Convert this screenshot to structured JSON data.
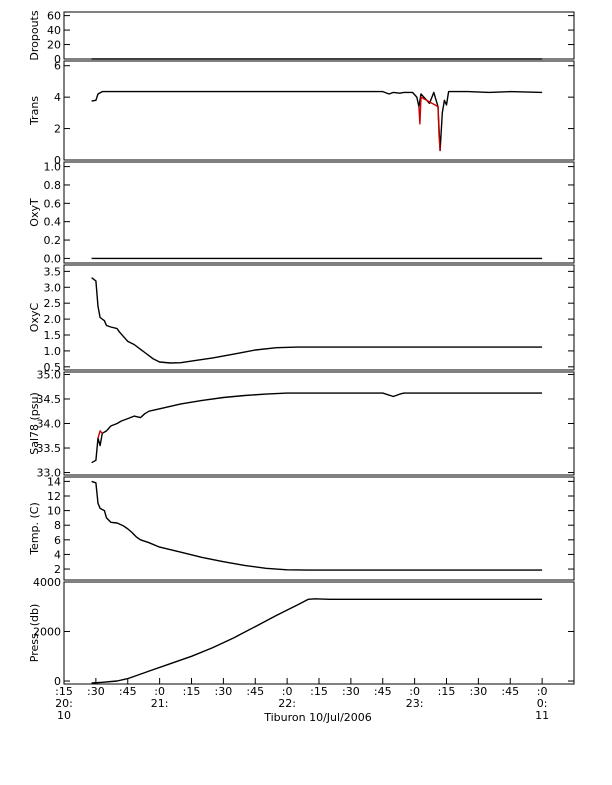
{
  "chart_data": {
    "type": "line",
    "xlabel": "Tiburon 10/Jul/2006",
    "x_ticks": [
      {
        "t": 0,
        "line1": ":15",
        "line2": "20:",
        "line3": "10"
      },
      {
        "t": 15,
        "line1": ":30",
        "line2": "",
        "line3": ""
      },
      {
        "t": 30,
        "line1": ":45",
        "line2": "",
        "line3": ""
      },
      {
        "t": 45,
        "line1": ":0",
        "line2": "21:",
        "line3": ""
      },
      {
        "t": 60,
        "line1": ":15",
        "line2": "",
        "line3": ""
      },
      {
        "t": 75,
        "line1": ":30",
        "line2": "",
        "line3": ""
      },
      {
        "t": 90,
        "line1": ":45",
        "line2": "",
        "line3": ""
      },
      {
        "t": 105,
        "line1": ":0",
        "line2": "22:",
        "line3": ""
      },
      {
        "t": 120,
        "line1": ":15",
        "line2": "",
        "line3": ""
      },
      {
        "t": 135,
        "line1": ":30",
        "line2": "",
        "line3": ""
      },
      {
        "t": 150,
        "line1": ":45",
        "line2": "",
        "line3": ""
      },
      {
        "t": 165,
        "line1": ":0",
        "line2": "23:",
        "line3": ""
      },
      {
        "t": 180,
        "line1": ":15",
        "line2": "",
        "line3": ""
      },
      {
        "t": 195,
        "line1": ":30",
        "line2": "",
        "line3": ""
      },
      {
        "t": 210,
        "line1": ":45",
        "line2": "",
        "line3": ""
      },
      {
        "t": 225,
        "line1": ":0",
        "line2": "0:",
        "line3": "11"
      }
    ],
    "xlim": [
      0,
      240
    ],
    "panels": [
      {
        "ylabel": "Dropouts",
        "ylim": [
          0,
          65
        ],
        "ticks": [
          0,
          20,
          40,
          60
        ],
        "tick_labels": [
          "0",
          "20",
          "40",
          "60"
        ],
        "series": [
          {
            "color": "#000000",
            "points": [
              [
                13,
                0
              ],
              [
                225,
                0
              ]
            ]
          }
        ]
      },
      {
        "ylabel": "Trans",
        "ylim": [
          0,
          6.3
        ],
        "ticks": [
          0,
          2,
          4,
          6
        ],
        "tick_labels": [
          "0",
          "2",
          "4",
          "6"
        ],
        "series": [
          {
            "color": "#000000",
            "points": [
              [
                13,
                3.75
              ],
              [
                15,
                3.8
              ],
              [
                16,
                4.2
              ],
              [
                18,
                4.35
              ],
              [
                30,
                4.35
              ],
              [
                60,
                4.35
              ],
              [
                100,
                4.35
              ],
              [
                150,
                4.35
              ],
              [
                153,
                4.2
              ],
              [
                155,
                4.3
              ],
              [
                158,
                4.25
              ],
              [
                160,
                4.3
              ],
              [
                164,
                4.3
              ],
              [
                166,
                4.0
              ],
              [
                167,
                3.4
              ],
              [
                168,
                4.2
              ],
              [
                170,
                3.9
              ],
              [
                172,
                3.6
              ],
              [
                174,
                4.3
              ],
              [
                176,
                3.4
              ],
              [
                177,
                0.6
              ],
              [
                178,
                3.0
              ],
              [
                179,
                3.8
              ],
              [
                180,
                3.5
              ],
              [
                181,
                4.35
              ],
              [
                190,
                4.35
              ],
              [
                200,
                4.3
              ],
              [
                210,
                4.35
              ],
              [
                225,
                4.3
              ]
            ]
          },
          {
            "color": "#cc0000",
            "points": [
              [
                167,
                3.4
              ],
              [
                167.5,
                2.3
              ],
              [
                168,
                4.0
              ],
              [
                176,
                3.4
              ],
              [
                176.5,
                1.5
              ],
              [
                177,
                0.6
              ]
            ]
          }
        ]
      },
      {
        "ylabel": "OxyT",
        "ylim": [
          -0.05,
          1.05
        ],
        "ticks": [
          0,
          0.2,
          0.4,
          0.6,
          0.8,
          1.0
        ],
        "tick_labels": [
          "0.0",
          "0.2",
          "0.4",
          "0.6",
          "0.8",
          "1.0"
        ],
        "series": [
          {
            "color": "#000000",
            "points": [
              [
                13,
                0
              ],
              [
                225,
                0
              ]
            ]
          }
        ]
      },
      {
        "ylabel": "OxyC",
        "ylim": [
          0.4,
          3.7
        ],
        "ticks": [
          0.5,
          1.0,
          1.5,
          2.0,
          2.5,
          3.0,
          3.5
        ],
        "tick_labels": [
          "0.5",
          "1.0",
          "1.5",
          "2.0",
          "2.5",
          "3.0",
          "3.5"
        ],
        "series": [
          {
            "color": "#000000",
            "points": [
              [
                13,
                3.3
              ],
              [
                15,
                3.2
              ],
              [
                16,
                2.4
              ],
              [
                17,
                2.05
              ],
              [
                19,
                1.95
              ],
              [
                20,
                1.8
              ],
              [
                22,
                1.75
              ],
              [
                25,
                1.7
              ],
              [
                26,
                1.6
              ],
              [
                28,
                1.45
              ],
              [
                30,
                1.3
              ],
              [
                33,
                1.2
              ],
              [
                36,
                1.05
              ],
              [
                38,
                0.95
              ],
              [
                40,
                0.85
              ],
              [
                42,
                0.75
              ],
              [
                45,
                0.65
              ],
              [
                50,
                0.62
              ],
              [
                55,
                0.63
              ],
              [
                60,
                0.68
              ],
              [
                70,
                0.78
              ],
              [
                80,
                0.9
              ],
              [
                90,
                1.03
              ],
              [
                100,
                1.1
              ],
              [
                110,
                1.12
              ],
              [
                130,
                1.12
              ],
              [
                160,
                1.12
              ],
              [
                200,
                1.12
              ],
              [
                225,
                1.12
              ]
            ]
          }
        ]
      },
      {
        "ylabel": "Sal78 (psu)",
        "ylim": [
          32.95,
          35.05
        ],
        "ticks": [
          33.0,
          33.5,
          34.0,
          34.5,
          35.0
        ],
        "tick_labels": [
          "33.0",
          "33.5",
          "34.0",
          "34.5",
          "35.0"
        ],
        "series": [
          {
            "color": "#000000",
            "points": [
              [
                13,
                33.2
              ],
              [
                15,
                33.25
              ],
              [
                16,
                33.7
              ],
              [
                17,
                33.55
              ],
              [
                18,
                33.8
              ],
              [
                20,
                33.85
              ],
              [
                22,
                33.95
              ],
              [
                25,
                34.0
              ],
              [
                27,
                34.05
              ],
              [
                30,
                34.1
              ],
              [
                33,
                34.15
              ],
              [
                36,
                34.12
              ],
              [
                38,
                34.2
              ],
              [
                40,
                34.25
              ],
              [
                45,
                34.3
              ],
              [
                55,
                34.4
              ],
              [
                65,
                34.47
              ],
              [
                75,
                34.53
              ],
              [
                85,
                34.57
              ],
              [
                95,
                34.6
              ],
              [
                105,
                34.62
              ],
              [
                130,
                34.62
              ],
              [
                150,
                34.62
              ],
              [
                155,
                34.55
              ],
              [
                158,
                34.6
              ],
              [
                160,
                34.62
              ],
              [
                200,
                34.62
              ],
              [
                225,
                34.62
              ]
            ]
          },
          {
            "color": "#cc0000",
            "points": [
              [
                16,
                33.7
              ],
              [
                17,
                33.85
              ],
              [
                18,
                33.8
              ]
            ]
          }
        ]
      },
      {
        "ylabel": "Temp. (C)",
        "ylim": [
          0.5,
          14.6
        ],
        "ticks": [
          2,
          4,
          6,
          8,
          10,
          12,
          14
        ],
        "tick_labels": [
          "2",
          "4",
          "6",
          "8",
          "10",
          "12",
          "14"
        ],
        "series": [
          {
            "color": "#000000",
            "points": [
              [
                13,
                14.0
              ],
              [
                15,
                13.8
              ],
              [
                16,
                11.0
              ],
              [
                17,
                10.3
              ],
              [
                19,
                10.0
              ],
              [
                20,
                9.0
              ],
              [
                22,
                8.4
              ],
              [
                25,
                8.3
              ],
              [
                28,
                7.9
              ],
              [
                30,
                7.5
              ],
              [
                32,
                7.0
              ],
              [
                34,
                6.4
              ],
              [
                36,
                6.0
              ],
              [
                40,
                5.6
              ],
              [
                45,
                5.0
              ],
              [
                55,
                4.3
              ],
              [
                65,
                3.6
              ],
              [
                75,
                3.0
              ],
              [
                85,
                2.5
              ],
              [
                95,
                2.1
              ],
              [
                105,
                1.9
              ],
              [
                115,
                1.85
              ],
              [
                150,
                1.85
              ],
              [
                200,
                1.85
              ],
              [
                225,
                1.85
              ]
            ]
          }
        ]
      },
      {
        "ylabel": "Press. (db)",
        "ylim": [
          -120,
          4000
        ],
        "ticks": [
          0,
          2000,
          4000
        ],
        "tick_labels": [
          "0",
          "2000",
          "4000"
        ],
        "series": [
          {
            "color": "#000000",
            "points": [
              [
                13,
                -80
              ],
              [
                18,
                -50
              ],
              [
                25,
                0
              ],
              [
                30,
                100
              ],
              [
                40,
                400
              ],
              [
                50,
                700
              ],
              [
                60,
                1000
              ],
              [
                70,
                1350
              ],
              [
                80,
                1750
              ],
              [
                90,
                2200
              ],
              [
                100,
                2650
              ],
              [
                110,
                3080
              ],
              [
                115,
                3300
              ],
              [
                118,
                3320
              ],
              [
                125,
                3300
              ],
              [
                140,
                3300
              ],
              [
                180,
                3300
              ],
              [
                225,
                3300
              ]
            ]
          }
        ]
      }
    ]
  }
}
